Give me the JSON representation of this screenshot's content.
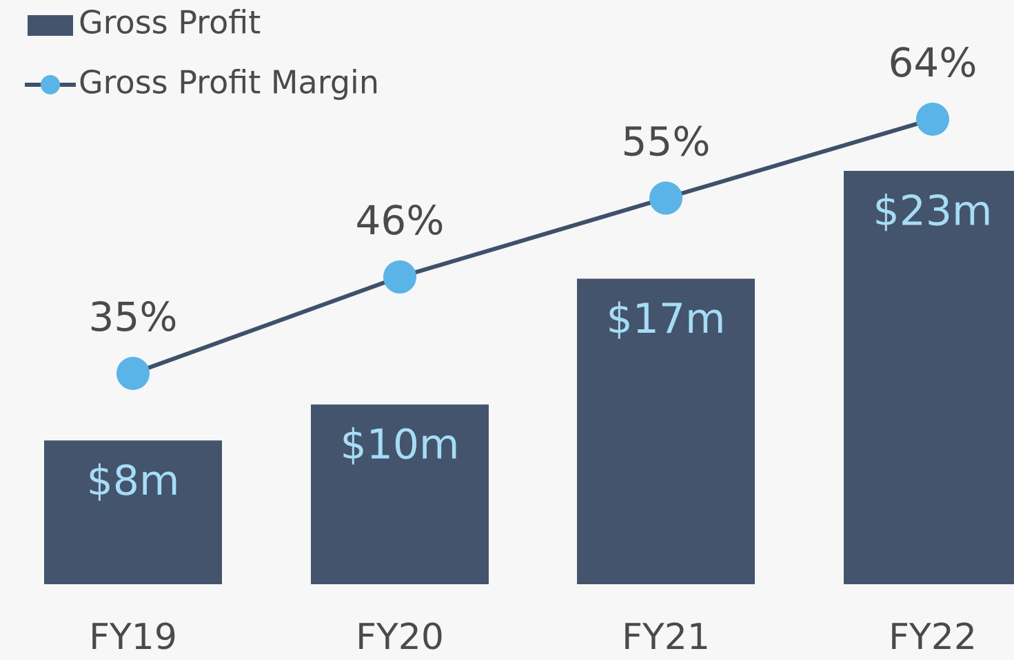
{
  "chart_data": {
    "type": "bar",
    "categories": [
      "FY19",
      "FY20",
      "FY21",
      "FY22"
    ],
    "series": [
      {
        "name": "Gross Profit",
        "type": "bar",
        "color": "#44546c",
        "label_color": "#a6dcf5",
        "values": [
          8,
          10,
          17,
          23
        ],
        "value_labels": [
          "$8m",
          "$10m",
          "$17m",
          "$23m"
        ]
      },
      {
        "name": "Gross Profit Margin",
        "type": "line",
        "color": "#3f506a",
        "marker_color": "#5ab4e8",
        "values": [
          35,
          46,
          55,
          64
        ],
        "value_labels": [
          "35%",
          "46%",
          "55%",
          "64%"
        ]
      }
    ],
    "legend": "upper left"
  }
}
